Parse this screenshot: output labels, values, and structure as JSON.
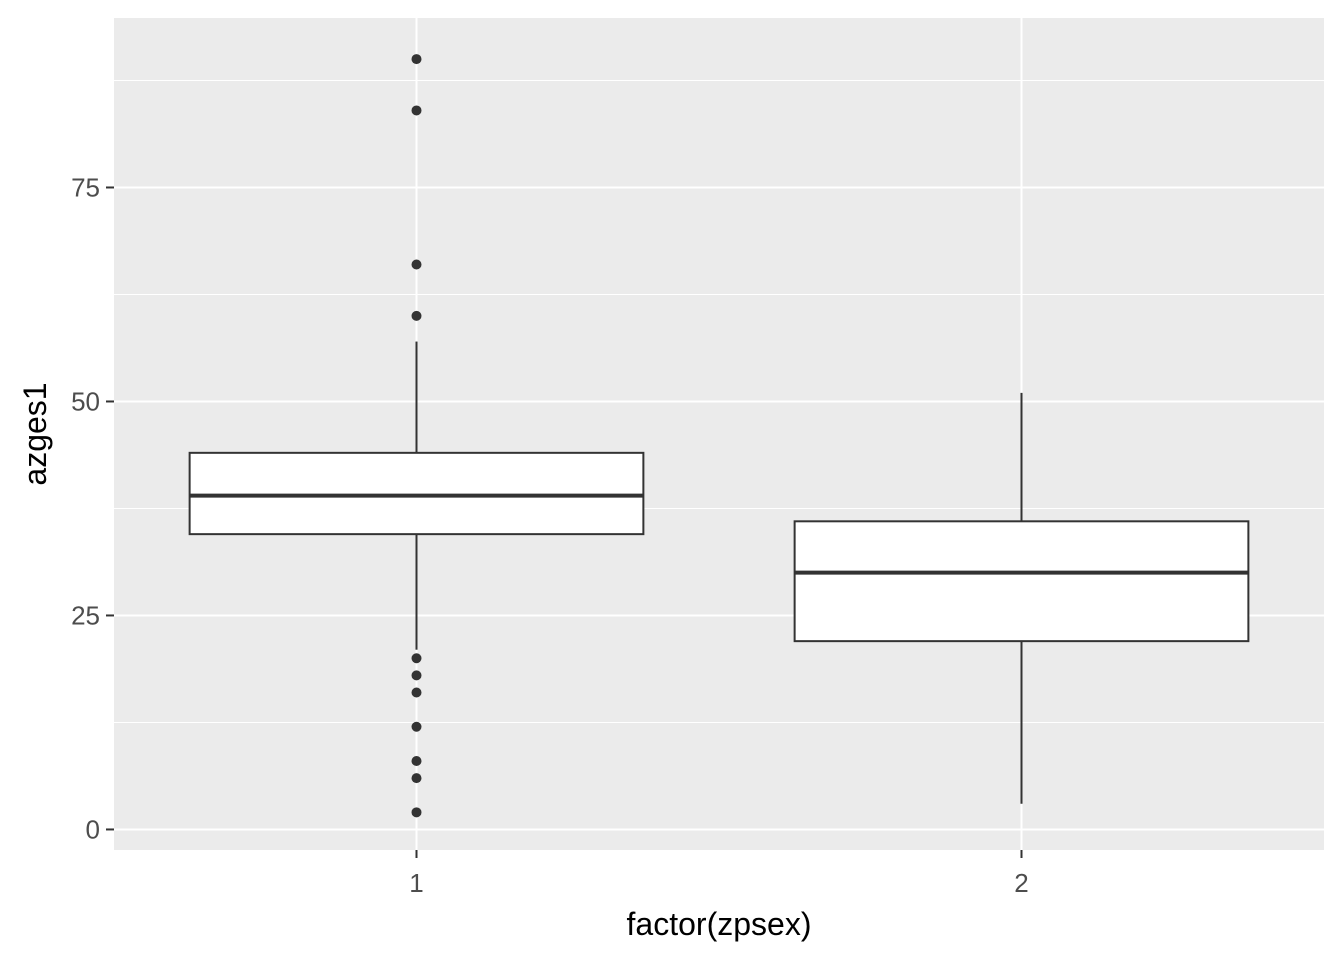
{
  "chart_data": {
    "type": "boxplot",
    "title": "",
    "xlabel": "factor(zpsex)",
    "ylabel": "azges1",
    "categories": [
      "1",
      "2"
    ],
    "ylim": [
      -2.4,
      94.8
    ],
    "yticks": [
      0,
      25,
      50,
      75
    ],
    "grid": true,
    "colors": {
      "panel": "#ebebeb",
      "grid": "#ffffff",
      "box_fill": "#ffffff",
      "box_stroke": "#333333",
      "outlier": "#333333",
      "tick_text": "#4d4d4d"
    },
    "boxes": [
      {
        "category": "1",
        "lower_whisker": 21,
        "q1": 34.5,
        "median": 39,
        "q3": 44,
        "upper_whisker": 57,
        "outliers": [
          2,
          6,
          8,
          12,
          16,
          18,
          20,
          60,
          66,
          84,
          90
        ]
      },
      {
        "category": "2",
        "lower_whisker": 3,
        "q1": 22,
        "median": 30,
        "q3": 36,
        "upper_whisker": 51,
        "outliers": []
      }
    ]
  }
}
